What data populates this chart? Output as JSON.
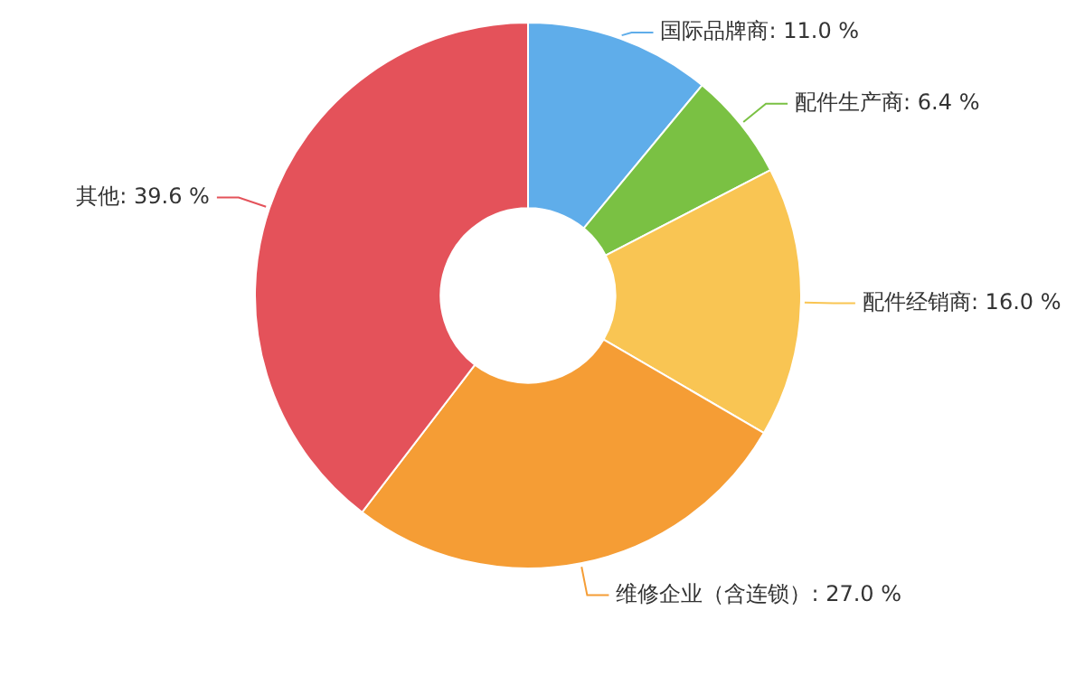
{
  "chart_data": {
    "type": "donut",
    "categories": [
      "国际品牌商",
      "配件生产商",
      "配件经销商",
      "维修企业（含连锁）",
      "其他"
    ],
    "values": [
      11.0,
      6.4,
      16.0,
      27.0,
      39.6
    ],
    "value_labels": [
      "11.0 %",
      "6.4 %",
      "16.0 %",
      "27.0 %",
      "39.6 %"
    ],
    "colors": [
      "#5fadea",
      "#7ac143",
      "#f9c553",
      "#f59d35",
      "#e4525a"
    ],
    "legend": false
  }
}
